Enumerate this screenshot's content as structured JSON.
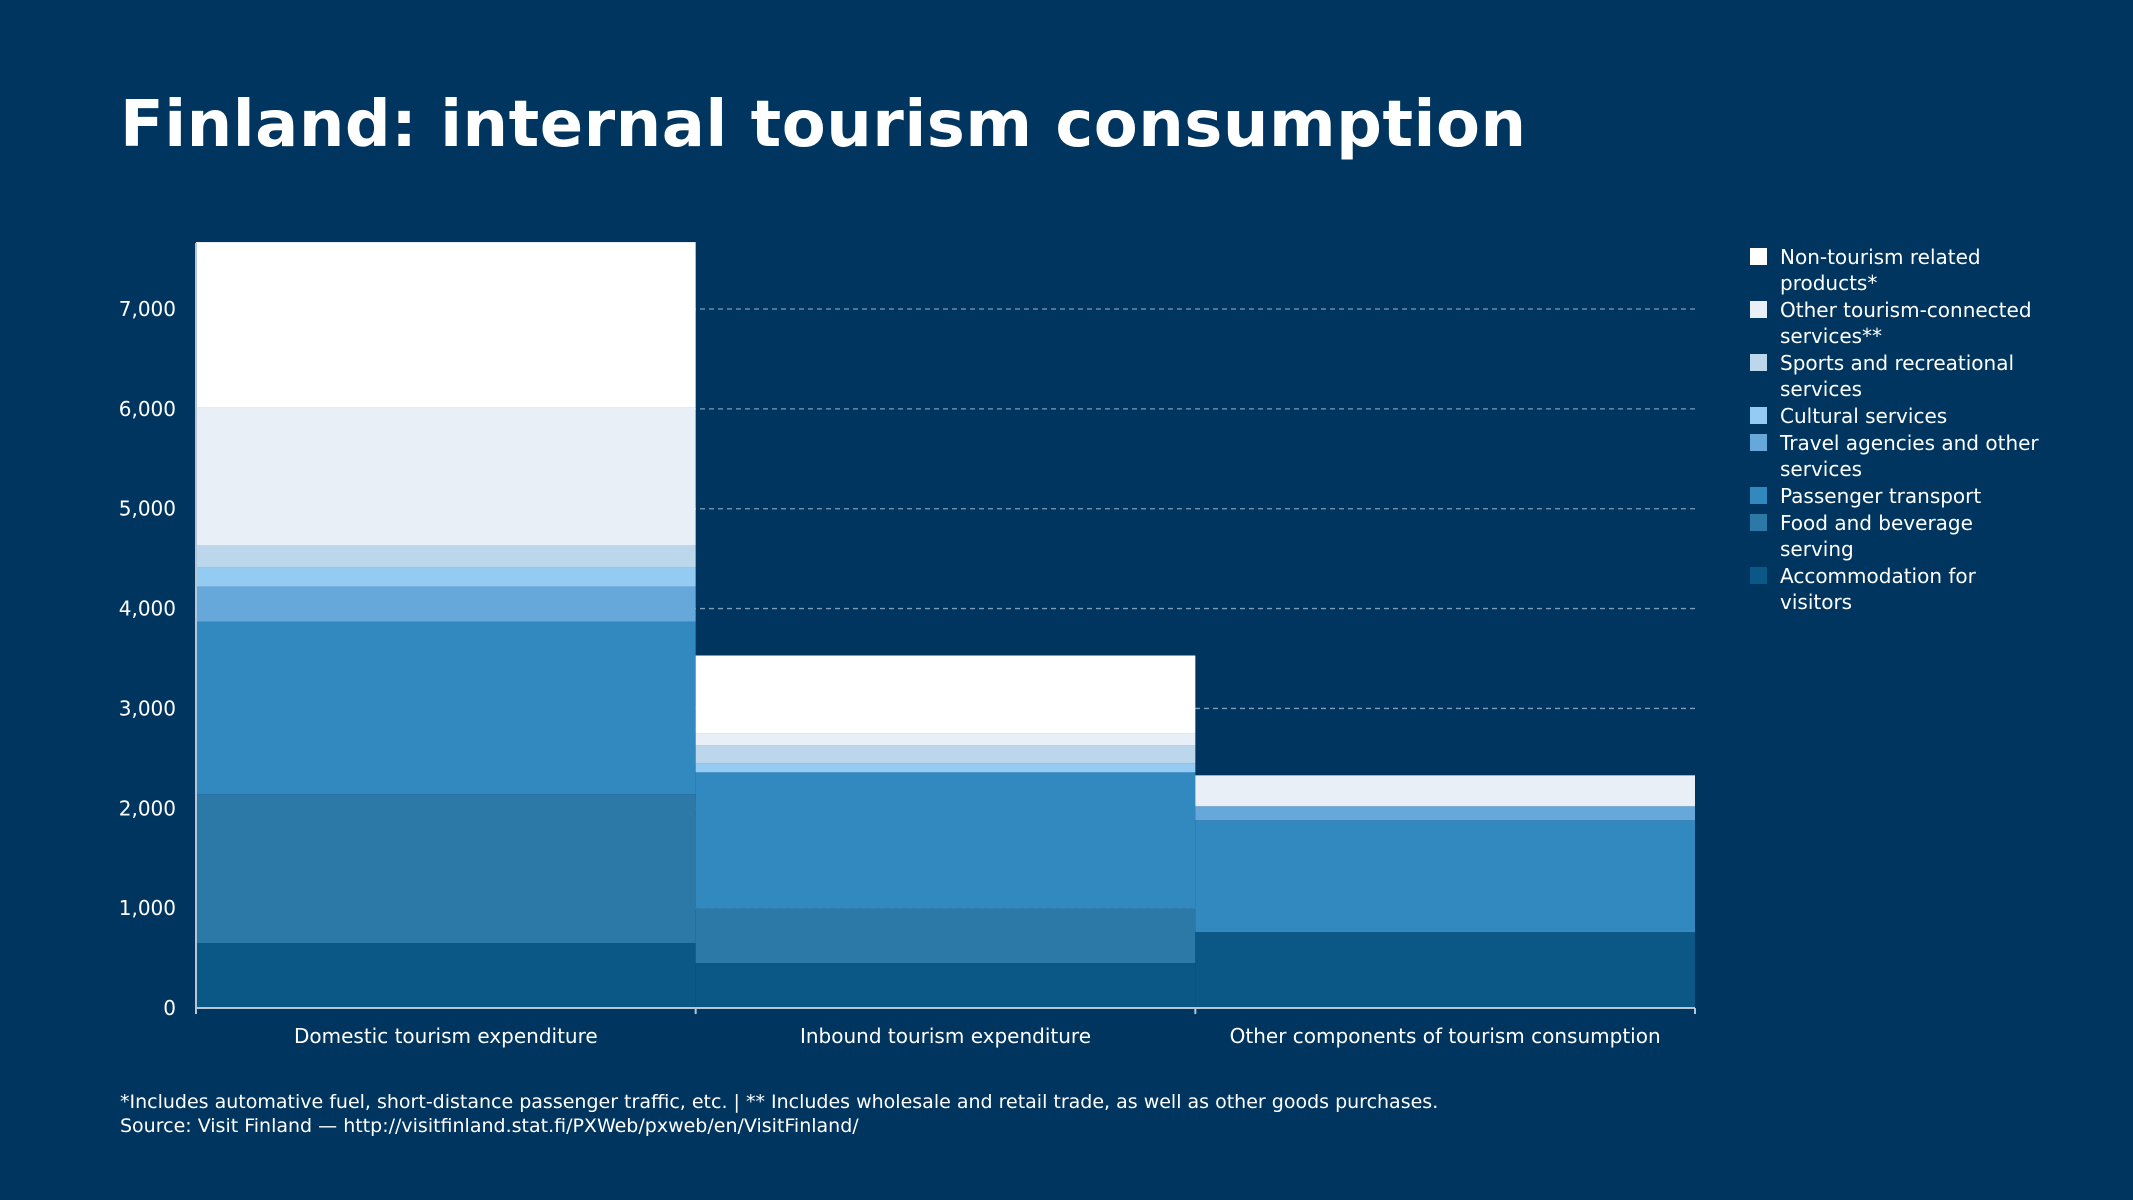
{
  "title": "Finland: internal tourism consumption",
  "chart_data": {
    "type": "bar",
    "stacked": true,
    "title": "Finland: internal tourism consumption",
    "xlabel": "",
    "ylabel": "",
    "ylim": [
      0,
      7700
    ],
    "yticks": [
      0,
      1000,
      2000,
      3000,
      4000,
      5000,
      6000,
      7000
    ],
    "ytick_labels": [
      "0",
      "1,000",
      "2,000",
      "3,000",
      "4,000",
      "5,000",
      "6,000",
      "7,000"
    ],
    "grid": true,
    "legend_position": "right",
    "categories": [
      "Domestic tourism expenditure",
      "Inbound tourism expenditure",
      "Other components of tourism consumption"
    ],
    "series": [
      {
        "name": "Accommodation for visitors",
        "color": "#0b5785",
        "values": [
          650,
          450,
          760
        ]
      },
      {
        "name": "Food and beverage serving",
        "color": "#2c78a6",
        "values": [
          1490,
          545,
          0
        ]
      },
      {
        "name": "Passenger transport",
        "color": "#3289bf",
        "values": [
          1730,
          1365,
          1120
        ]
      },
      {
        "name": "Travel agencies and other services",
        "color": "#66a8da",
        "values": [
          350,
          0,
          140
        ]
      },
      {
        "name": "Cultural services",
        "color": "#94cbf3",
        "values": [
          190,
          90,
          0
        ]
      },
      {
        "name": "Sports and recreational services",
        "color": "#bcd7ec",
        "values": [
          220,
          180,
          0
        ]
      },
      {
        "name": "Other tourism-connected services**",
        "color": "#e8eff7",
        "values": [
          1380,
          120,
          310
        ]
      },
      {
        "name": "Non-tourism related products*",
        "color": "#ffffff",
        "values": [
          1660,
          780,
          0
        ]
      }
    ]
  },
  "legend": [
    {
      "label": "Non-tourism related products*",
      "color": "#ffffff"
    },
    {
      "label": "Other tourism-connected services**",
      "color": "#e8eff7"
    },
    {
      "label": "Sports and recreational services",
      "color": "#bcd7ec"
    },
    {
      "label": "Cultural services",
      "color": "#94cbf3"
    },
    {
      "label": "Travel agencies and other services",
      "color": "#66a8da"
    },
    {
      "label": "Passenger transport",
      "color": "#3289bf"
    },
    {
      "label": "Food and beverage serving",
      "color": "#2c78a6"
    },
    {
      "label": "Accommodation for visitors",
      "color": "#0b5785"
    }
  ],
  "footnote": "*Includes automative fuel, short-distance passenger traffic, etc. | ** Includes wholesale and retail trade, as well as other goods purchases.",
  "source": "Source: Visit Finland — http://visitfinland.stat.fi/PXWeb/pxweb/en/VisitFinland/"
}
